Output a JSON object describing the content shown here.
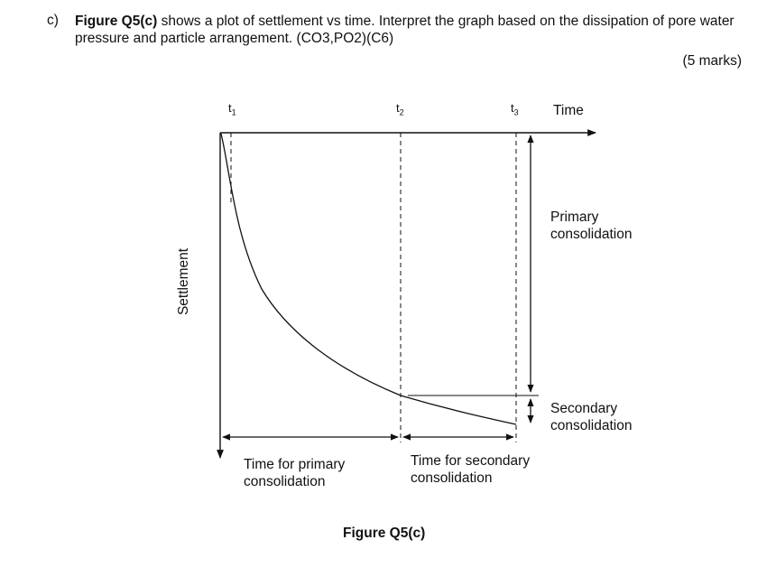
{
  "question": {
    "label": "c)",
    "figure_ref": "Figure Q5(c)",
    "text": " shows a plot of settlement vs time. Interpret the graph based on the dissipation of pore water pressure and particle arrangement. (CO3,PO2)(C6)",
    "marks": "(5 marks)"
  },
  "figure": {
    "ticks": [
      {
        "letter": "t",
        "sub": "1"
      },
      {
        "letter": "t",
        "sub": "2"
      },
      {
        "letter": "t",
        "sub": "3"
      }
    ],
    "time_label": "Time",
    "settlement_label": "Settlement",
    "primary_label_1": "Primary",
    "primary_label_2": "consolidation",
    "secondary_label_1": "Secondary",
    "secondary_label_2": "consolidation",
    "time_primary_1": "Time for primary",
    "time_primary_2": "consolidation",
    "time_secondary_1": "Time for secondary",
    "time_secondary_2": "consolidation",
    "caption": "Figure Q5(c)"
  }
}
